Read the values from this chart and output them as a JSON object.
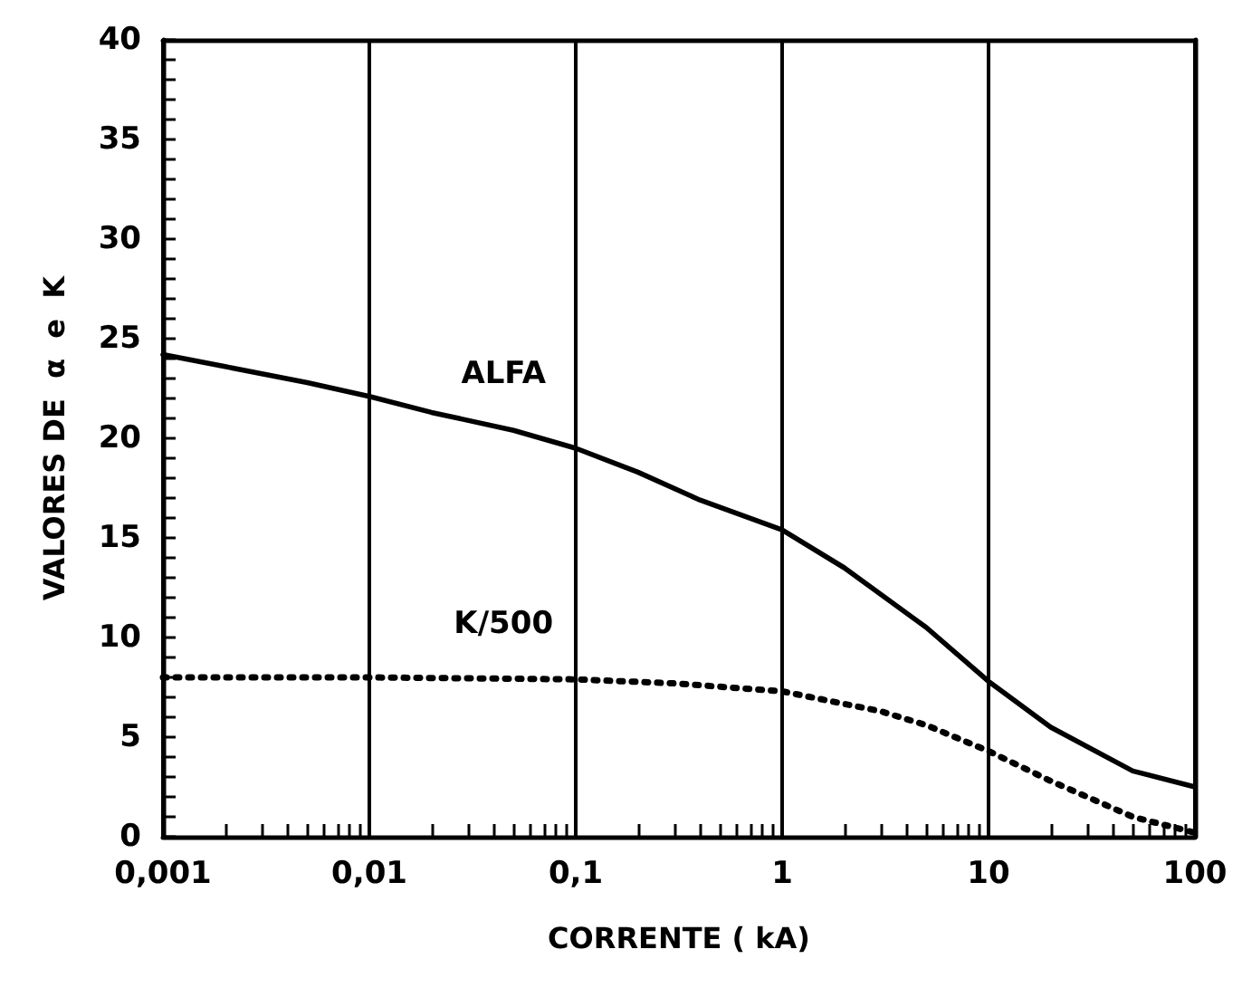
{
  "chart_data": {
    "type": "line",
    "xlabel": "CORRENTE ( kA)",
    "ylabel": "VALORES DE  α  e  K",
    "log": "x",
    "grid": "x",
    "legend": false,
    "marker": "none",
    "xlim": [
      0.001,
      100
    ],
    "ylim": [
      0,
      40
    ],
    "xticks": [
      {
        "value": 0.001,
        "label": "0,001"
      },
      {
        "value": 0.002,
        "label": null
      },
      {
        "value": 0.003,
        "label": null
      },
      {
        "value": 0.004,
        "label": null
      },
      {
        "value": 0.005,
        "label": null
      },
      {
        "value": 0.006,
        "label": null
      },
      {
        "value": 0.007,
        "label": null
      },
      {
        "value": 0.008,
        "label": null
      },
      {
        "value": 0.009,
        "label": null
      },
      {
        "value": 0.01,
        "label": "0,01"
      },
      {
        "value": 0.02,
        "label": null
      },
      {
        "value": 0.03,
        "label": null
      },
      {
        "value": 0.04,
        "label": null
      },
      {
        "value": 0.05,
        "label": null
      },
      {
        "value": 0.06,
        "label": null
      },
      {
        "value": 0.07,
        "label": null
      },
      {
        "value": 0.08,
        "label": null
      },
      {
        "value": 0.09,
        "label": null
      },
      {
        "value": 0.1,
        "label": "0,1"
      },
      {
        "value": 0.2,
        "label": null
      },
      {
        "value": 0.3,
        "label": null
      },
      {
        "value": 0.4,
        "label": null
      },
      {
        "value": 0.5,
        "label": null
      },
      {
        "value": 0.6,
        "label": null
      },
      {
        "value": 0.7,
        "label": null
      },
      {
        "value": 0.8,
        "label": null
      },
      {
        "value": 0.9,
        "label": null
      },
      1,
      {
        "value": 2,
        "label": null
      },
      {
        "value": 3,
        "label": null
      },
      {
        "value": 4,
        "label": null
      },
      {
        "value": 5,
        "label": null
      },
      {
        "value": 6,
        "label": null
      },
      {
        "value": 7,
        "label": null
      },
      {
        "value": 8,
        "label": null
      },
      {
        "value": 9,
        "label": null
      },
      10,
      {
        "value": 20,
        "label": null
      },
      {
        "value": 30,
        "label": null
      },
      {
        "value": 40,
        "label": null
      },
      {
        "value": 50,
        "label": null
      },
      {
        "value": 60,
        "label": null
      },
      {
        "value": 70,
        "label": null
      },
      {
        "value": 80,
        "label": null
      },
      {
        "value": 90,
        "label": null
      },
      100
    ],
    "yticks": [
      0,
      {
        "value": 1,
        "label": null
      },
      {
        "value": 2,
        "label": null
      },
      {
        "value": 3,
        "label": null
      },
      {
        "value": 4,
        "label": null
      },
      5,
      {
        "value": 6,
        "label": null
      },
      {
        "value": 7,
        "label": null
      },
      {
        "value": 8,
        "label": null
      },
      {
        "value": 9,
        "label": null
      },
      10,
      {
        "value": 11,
        "label": null
      },
      {
        "value": 12,
        "label": null
      },
      {
        "value": 13,
        "label": null
      },
      {
        "value": 14,
        "label": null
      },
      15,
      {
        "value": 16,
        "label": null
      },
      {
        "value": 17,
        "label": null
      },
      {
        "value": 18,
        "label": null
      },
      {
        "value": 19,
        "label": null
      },
      20,
      {
        "value": 21,
        "label": null
      },
      {
        "value": 22,
        "label": null
      },
      {
        "value": 23,
        "label": null
      },
      {
        "value": 24,
        "label": null
      },
      25,
      {
        "value": 26,
        "label": null
      },
      {
        "value": 27,
        "label": null
      },
      {
        "value": 28,
        "label": null
      },
      {
        "value": 29,
        "label": null
      },
      30,
      {
        "value": 31,
        "label": null
      },
      {
        "value": 32,
        "label": null
      },
      {
        "value": 33,
        "label": null
      },
      {
        "value": 34,
        "label": null
      },
      35,
      {
        "value": 36,
        "label": null
      },
      {
        "value": 37,
        "label": null
      },
      {
        "value": 38,
        "label": null
      },
      {
        "value": 39,
        "label": null
      },
      40
    ],
    "series": [
      {
        "name": "ALFA",
        "color": "#000000",
        "line_style": "solid",
        "x": [
          0.001,
          0.002,
          0.005,
          0.01,
          0.02,
          0.05,
          0.1,
          0.2,
          0.4,
          1,
          2,
          5,
          10,
          20,
          50,
          100
        ],
        "values": [
          24.2,
          23.6,
          22.8,
          22.1,
          21.3,
          20.4,
          19.5,
          18.3,
          16.9,
          15.4,
          13.5,
          10.5,
          7.8,
          5.5,
          3.3,
          2.5
        ]
      },
      {
        "name": "K/500",
        "color": "#000000",
        "line_style": "dotted",
        "x": [
          0.001,
          0.01,
          0.1,
          0.3,
          1,
          3,
          5,
          10,
          20,
          50,
          100
        ],
        "values": [
          8,
          8,
          7.9,
          7.7,
          7.3,
          6.3,
          5.6,
          4.3,
          2.8,
          1.0,
          0.2
        ]
      }
    ]
  }
}
